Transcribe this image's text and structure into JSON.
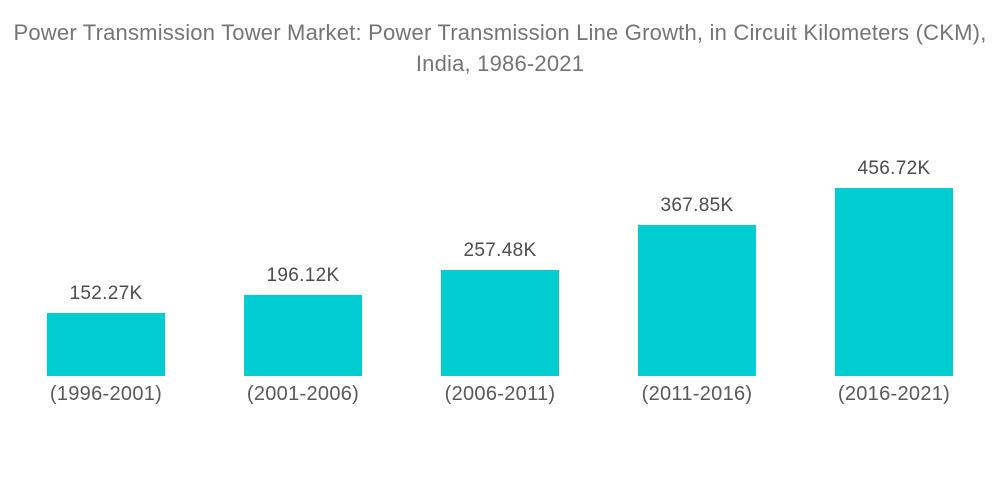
{
  "title": "Power Transmission Tower Market: Power Transmission Line Growth, in Circuit Kilometers (CKM), India, 1986-2021",
  "colors": {
    "background": "#ffffff",
    "bar_fill": "#00CDD1",
    "title_text": "#757575",
    "value_label_text": "#4d4d4d",
    "category_label_text": "#595959"
  },
  "chart_data": {
    "type": "bar",
    "title": "Power Transmission Tower Market: Power Transmission Line Growth, in Circuit Kilometers (CKM), India, 1986-2021",
    "categories": [
      "(1996-2001)",
      "(2001-2006)",
      "(2006-2011)",
      "(2011-2016)",
      "(2016-2021)"
    ],
    "values": [
      152.27,
      196.12,
      257.48,
      367.85,
      456.72
    ],
    "value_labels": [
      "152.27K",
      "196.12K",
      "257.48K",
      "367.85K",
      "456.72K"
    ],
    "value_unit": "thousand Circuit Kilometers (CKM)",
    "xlabel": "",
    "ylabel": "",
    "ylim": [
      0,
      470
    ],
    "grid": false,
    "legend": "none",
    "axes_visible": false,
    "bar_color": "#00CDD1"
  }
}
